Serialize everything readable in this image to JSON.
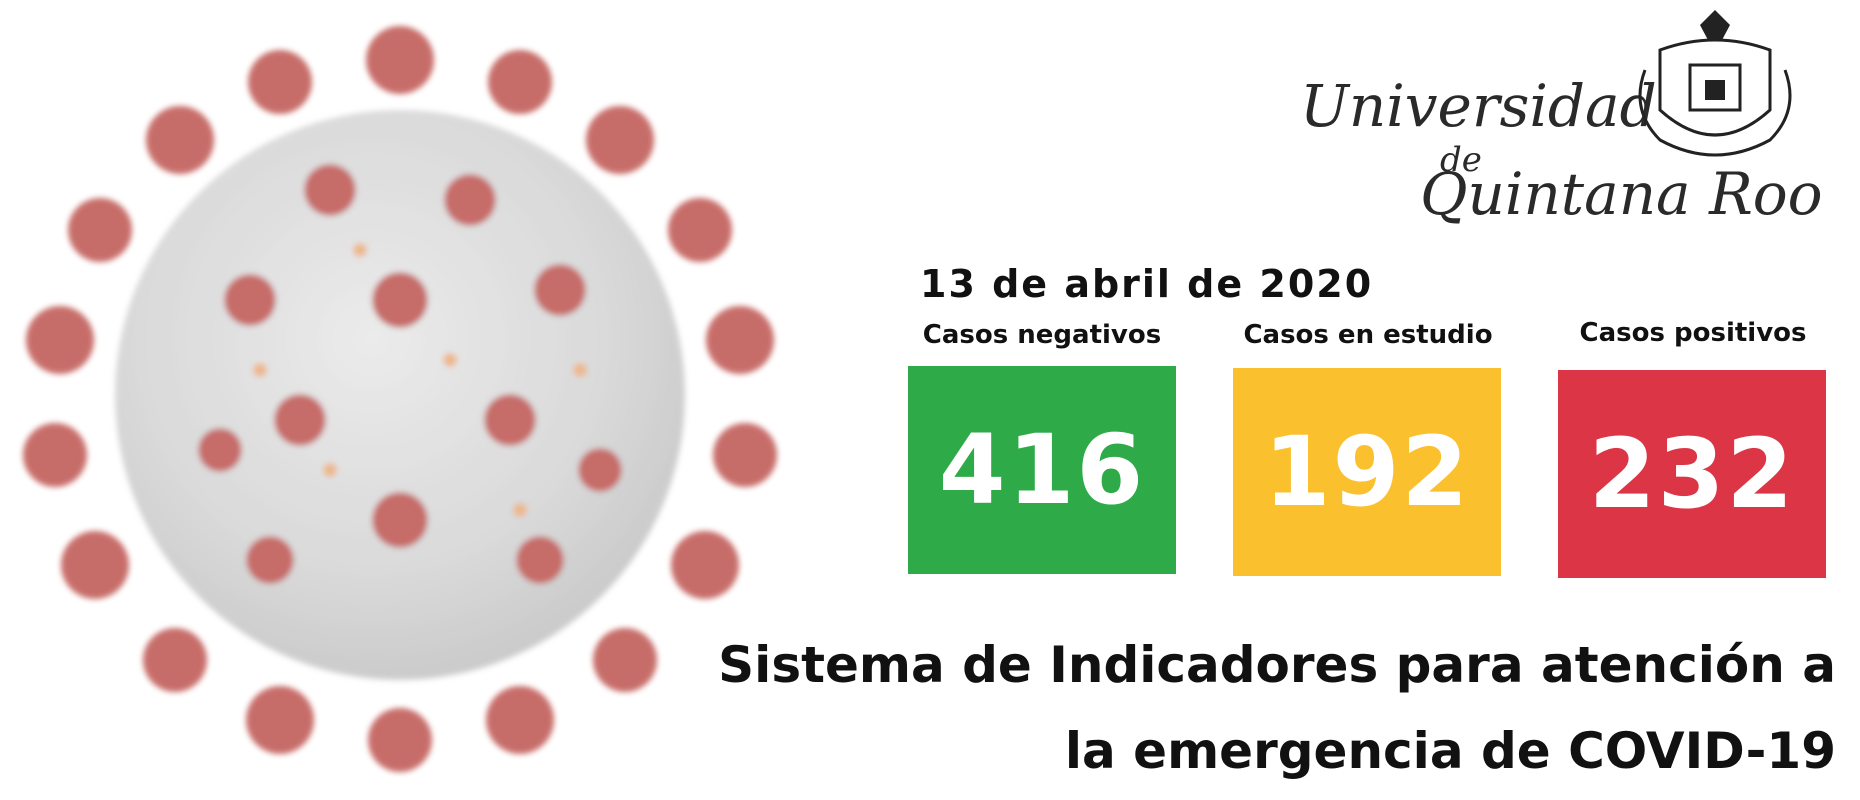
{
  "logo": {
    "line1": "Universidad",
    "line2": "de",
    "line3": "Quintana Roo"
  },
  "report": {
    "date": "13 de abril de 2020"
  },
  "stats": [
    {
      "label": "Casos negativos",
      "value": "416",
      "color": "#2eaa48"
    },
    {
      "label": "Casos en estudio",
      "value": "192",
      "color": "#fbc02d"
    },
    {
      "label": "Casos positivos",
      "value": "232",
      "color": "#dc3545"
    }
  ],
  "title": {
    "line1": "Sistema de Indicadores para atención a",
    "line2": "la emergencia de COVID-19"
  },
  "colors": {
    "virus_body": "#d6d6d6",
    "virus_spike": "#b8453f",
    "text": "#111111"
  }
}
